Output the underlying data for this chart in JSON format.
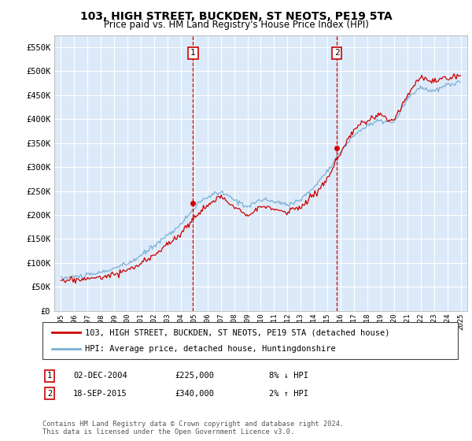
{
  "title": "103, HIGH STREET, BUCKDEN, ST NEOTS, PE19 5TA",
  "subtitle": "Price paid vs. HM Land Registry's House Price Index (HPI)",
  "plot_bg_color": "#dce9f8",
  "grid_color": "#ffffff",
  "ylim": [
    0,
    575000
  ],
  "yticks": [
    0,
    50000,
    100000,
    150000,
    200000,
    250000,
    300000,
    350000,
    400000,
    450000,
    500000,
    550000
  ],
  "ytick_labels": [
    "£0",
    "£50K",
    "£100K",
    "£150K",
    "£200K",
    "£250K",
    "£300K",
    "£350K",
    "£400K",
    "£450K",
    "£500K",
    "£550K"
  ],
  "purchase1": {
    "date_num": 2004.92,
    "price": 225000,
    "label": "1",
    "date_str": "02-DEC-2004",
    "price_str": "£225,000",
    "hpi_str": "8% ↓ HPI"
  },
  "purchase2": {
    "date_num": 2015.71,
    "price": 340000,
    "label": "2",
    "date_str": "18-SEP-2015",
    "price_str": "£340,000",
    "hpi_str": "2% ↑ HPI"
  },
  "legend_label_red": "103, HIGH STREET, BUCKDEN, ST NEOTS, PE19 5TA (detached house)",
  "legend_label_blue": "HPI: Average price, detached house, Huntingdonshire",
  "footer": "Contains HM Land Registry data © Crown copyright and database right 2024.\nThis data is licensed under the Open Government Licence v3.0.",
  "red_color": "#cc0000",
  "blue_color": "#7bafd4",
  "dashed_color": "#cc0000",
  "hpi_anchors_x": [
    1995,
    1997,
    1998,
    2000,
    2001,
    2004,
    2005,
    2006,
    2007,
    2008,
    2009,
    2010,
    2011,
    2012,
    2013,
    2014,
    2015,
    2016,
    2017,
    2018,
    2019,
    2020,
    2021,
    2022,
    2023,
    2024,
    2025
  ],
  "hpi_anchors_y": [
    68000,
    74000,
    80000,
    98000,
    115000,
    180000,
    215000,
    238000,
    248000,
    232000,
    218000,
    232000,
    228000,
    222000,
    232000,
    258000,
    293000,
    332000,
    367000,
    387000,
    397000,
    392000,
    442000,
    467000,
    457000,
    472000,
    477000
  ],
  "red_anchors_x": [
    1995,
    1997,
    1998,
    2000,
    2001,
    2004,
    2005,
    2006,
    2007,
    2008,
    2009,
    2010,
    2011,
    2012,
    2013,
    2014,
    2015,
    2016,
    2017,
    2018,
    2019,
    2020,
    2021,
    2022,
    2023,
    2024,
    2025
  ],
  "red_anchors_y": [
    63000,
    67000,
    70000,
    85000,
    97000,
    160000,
    195000,
    220000,
    238000,
    218000,
    202000,
    217000,
    212000,
    207000,
    217000,
    242000,
    275000,
    328000,
    378000,
    398000,
    408000,
    397000,
    452000,
    488000,
    477000,
    487000,
    492000
  ]
}
